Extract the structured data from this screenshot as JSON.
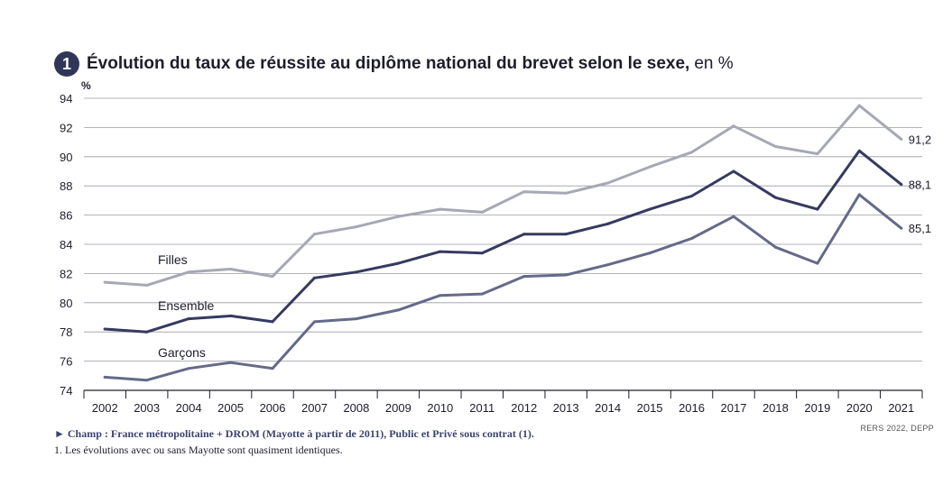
{
  "header": {
    "number": "1",
    "title": "Évolution du taux de réussite au diplôme national du brevet selon le sexe,",
    "unit": "en %"
  },
  "chart_data": {
    "type": "line",
    "ylabel": "%",
    "ylim": [
      74,
      94
    ],
    "yticks": [
      74,
      76,
      78,
      80,
      82,
      84,
      86,
      88,
      90,
      92,
      94
    ],
    "grid": "horizontal",
    "x": [
      "2002",
      "2003",
      "2004",
      "2005",
      "2006",
      "2007",
      "2008",
      "2009",
      "2010",
      "2011",
      "2012",
      "2013",
      "2014",
      "2015",
      "2016",
      "2017",
      "2018",
      "2019",
      "2020",
      "2021"
    ],
    "series": [
      {
        "name": "Filles",
        "color": "#a6a8b5",
        "values": [
          81.4,
          81.2,
          82.1,
          82.3,
          81.8,
          84.7,
          85.2,
          85.9,
          86.4,
          86.2,
          87.6,
          87.5,
          88.2,
          89.3,
          90.3,
          92.1,
          90.7,
          90.2,
          93.5,
          91.2
        ],
        "end_label": "91,2"
      },
      {
        "name": "Ensemble",
        "color": "#363a60",
        "values": [
          78.2,
          78.0,
          78.9,
          79.1,
          78.7,
          81.7,
          82.1,
          82.7,
          83.5,
          83.4,
          84.7,
          84.7,
          85.4,
          86.4,
          87.3,
          89.0,
          87.2,
          86.4,
          90.4,
          88.1
        ],
        "end_label": "88,1"
      },
      {
        "name": "Garçons",
        "color": "#646a88",
        "values": [
          74.9,
          74.7,
          75.5,
          75.9,
          75.5,
          78.7,
          78.9,
          79.5,
          80.5,
          80.6,
          81.8,
          81.9,
          82.6,
          83.4,
          84.4,
          85.9,
          83.8,
          82.7,
          87.4,
          85.1
        ],
        "end_label": "85,1"
      }
    ]
  },
  "footer": {
    "champ": "► Champ : France métropolitaine + DROM (Mayotte à partir de 2011), Public et Privé sous contrat (1).",
    "note": "1. Les évolutions avec ou sans Mayotte sont quasiment identiques.",
    "source": "RERS 2022, DEPP"
  }
}
